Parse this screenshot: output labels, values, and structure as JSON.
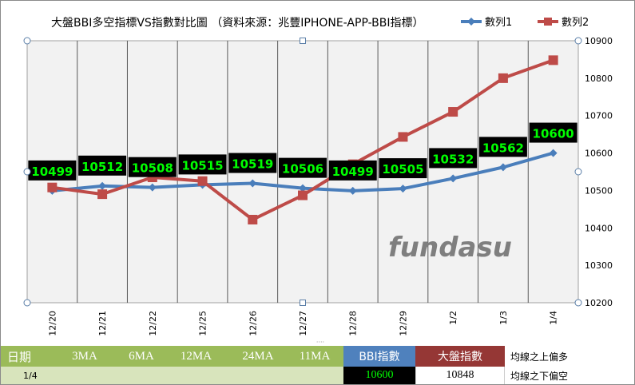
{
  "chart_data": {
    "type": "line",
    "title": "大盤BBI多空指標VS指數對比圖 （資料來源：兆豐IPHONE-APP-BBI指標）",
    "categories": [
      "12/20",
      "12/21",
      "12/22",
      "12/25",
      "12/26",
      "12/27",
      "12/28",
      "12/29",
      "1/2",
      "1/3",
      "1/4"
    ],
    "series": [
      {
        "name": "數列1",
        "color": "#4a7ebb",
        "values": [
          10499,
          10512,
          10508,
          10515,
          10519,
          10506,
          10499,
          10505,
          10532,
          10562,
          10600
        ]
      },
      {
        "name": "數列2",
        "color": "#be4b48",
        "values": [
          10508,
          10490,
          10535,
          10525,
          10422,
          10487,
          10570,
          10643,
          10710,
          10800,
          10848
        ]
      }
    ],
    "data_labels": [
      "10499",
      "10512",
      "10508",
      "10515",
      "10519",
      "10506",
      "10499",
      "10505",
      "10532",
      "10562",
      "10600"
    ],
    "yticks": [
      "10200",
      "10300",
      "10400",
      "10500",
      "10600",
      "10700",
      "10800",
      "10900"
    ],
    "ylim": [
      10200,
      10900
    ],
    "grid": "vertical",
    "legend": "top-right"
  },
  "watermark": "fundasu",
  "table": {
    "headers": {
      "date": "日期",
      "ma3": "3MA",
      "ma6": "6MA",
      "ma12": "12MA",
      "ma24": "24MA",
      "ma11": "11MA",
      "bbi": "BBI指數",
      "index": "大盤指數"
    },
    "row": {
      "date": "1/4",
      "bbi": "10600",
      "index": "10848"
    },
    "notes": [
      "均線之上偏多",
      "均線之下偏空"
    ]
  },
  "colors": {
    "green": "#9bbb59",
    "light_green": "#d8e4bc",
    "blue": "#4f81bd",
    "red": "#953735",
    "label_bg": "#000000",
    "label_text": "#00ff00"
  }
}
